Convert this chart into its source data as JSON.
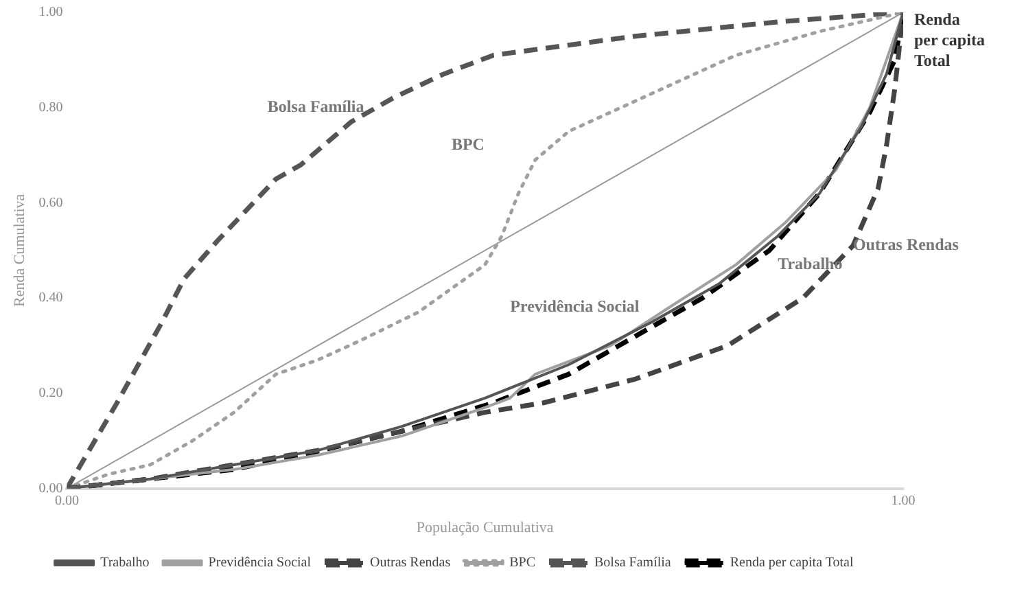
{
  "chart_data": {
    "type": "line",
    "xlabel": "População Cumulativa",
    "ylabel": "Renda Cumulativa",
    "xlim": [
      0,
      1
    ],
    "xticks": [
      {
        "value": 0,
        "label": "0.00"
      },
      {
        "value": 1,
        "label": "1.00"
      }
    ],
    "ylim": [
      0,
      1
    ],
    "yticks": [
      {
        "value": 0,
        "label": "0.00"
      },
      {
        "value": 0.2,
        "label": "0.20"
      },
      {
        "value": 0.4,
        "label": "0.40"
      },
      {
        "value": 0.6,
        "label": "0.60"
      },
      {
        "value": 0.8,
        "label": "0.80"
      },
      {
        "value": 1,
        "label": "1.00"
      }
    ],
    "grid": false,
    "legend": "bottom",
    "marker": "none",
    "series": [
      {
        "name": "Trabalho",
        "color": "#555555",
        "line_style": "solid",
        "x": [
          0,
          0.1,
          0.2,
          0.3,
          0.4,
          0.5,
          0.6,
          0.7,
          0.78,
          0.85,
          0.9,
          0.95,
          0.98,
          1
        ],
        "values": [
          0,
          0.02,
          0.05,
          0.08,
          0.13,
          0.19,
          0.26,
          0.35,
          0.43,
          0.53,
          0.62,
          0.76,
          0.87,
          1
        ]
      },
      {
        "name": "Previdência Social",
        "color": "#a0a0a0",
        "line_style": "solid",
        "x": [
          0,
          0.1,
          0.2,
          0.3,
          0.4,
          0.5,
          0.53,
          0.56,
          0.65,
          0.72,
          0.8,
          0.86,
          0.92,
          0.96,
          1
        ],
        "values": [
          0,
          0.02,
          0.04,
          0.07,
          0.11,
          0.17,
          0.19,
          0.24,
          0.3,
          0.38,
          0.47,
          0.56,
          0.67,
          0.8,
          1
        ]
      },
      {
        "name": "Outras Rendas",
        "color": "#444444",
        "line_style": "dashed",
        "x": [
          0,
          0.1,
          0.2,
          0.3,
          0.4,
          0.5,
          0.57,
          0.68,
          0.79,
          0.88,
          0.94,
          0.97,
          0.98,
          0.99,
          1
        ],
        "values": [
          0,
          0.02,
          0.05,
          0.08,
          0.12,
          0.16,
          0.18,
          0.23,
          0.3,
          0.4,
          0.51,
          0.63,
          0.72,
          0.84,
          1
        ]
      },
      {
        "name": "BPC",
        "color": "#a0a0a0",
        "line_style": "dotted",
        "x": [
          0,
          0.05,
          0.1,
          0.15,
          0.2,
          0.25,
          0.3,
          0.35,
          0.42,
          0.5,
          0.52,
          0.54,
          0.56,
          0.6,
          0.7,
          0.8,
          0.9,
          1
        ],
        "values": [
          0,
          0.03,
          0.05,
          0.1,
          0.16,
          0.24,
          0.27,
          0.31,
          0.37,
          0.47,
          0.53,
          0.62,
          0.69,
          0.75,
          0.83,
          0.91,
          0.96,
          1
        ]
      },
      {
        "name": "Bolsa Família",
        "color": "#555555",
        "line_style": "dashed",
        "x": [
          0,
          0.06,
          0.114,
          0.14,
          0.18,
          0.25,
          0.28,
          0.34,
          0.39,
          0.45,
          0.51,
          0.68,
          0.85,
          1
        ],
        "values": [
          0,
          0.18,
          0.35,
          0.44,
          0.52,
          0.65,
          0.68,
          0.77,
          0.82,
          0.87,
          0.91,
          0.95,
          0.98,
          1
        ]
      },
      {
        "name": "Renda per capita Total",
        "color": "#000000",
        "line_style": "dashed",
        "x": [
          0,
          0.1,
          0.2,
          0.28,
          0.4,
          0.51,
          0.6,
          0.68,
          0.76,
          0.84,
          0.9,
          0.96,
          0.99,
          1
        ],
        "values": [
          0,
          0.02,
          0.04,
          0.07,
          0.12,
          0.18,
          0.24,
          0.32,
          0.4,
          0.5,
          0.62,
          0.79,
          0.9,
          1
        ]
      },
      {
        "color": "#999999",
        "line_style": "solid",
        "x": [
          0,
          1
        ],
        "values": [
          0,
          1
        ]
      }
    ],
    "annotations": [
      "Bolsa Família",
      "BPC",
      "Previdência Social",
      "Trabalho",
      {
        "text": "Outras Rendas",
        "x": 0.94,
        "y": 0.51
      },
      {
        "text": "Renda per capita Total",
        "x": 1,
        "y": 1
      }
    ]
  }
}
